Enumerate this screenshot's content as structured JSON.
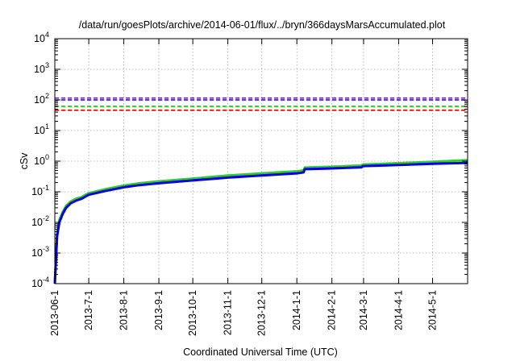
{
  "chart_data": {
    "type": "line",
    "title": "/data/run/goesPlots/archive/2014-06-01/flux/../bryn/366daysMarsAccumulated.plot",
    "xlabel": "Coordinated Universal Time (UTC)",
    "ylabel": "cSv",
    "yscale": "log",
    "ylim": [
      0.0001,
      10000
    ],
    "xlim": [
      "2013-06-01",
      "2014-06-01"
    ],
    "grid": true,
    "x_ticks": [
      "2013-06-1",
      "2013-7-1",
      "2013-8-1",
      "2013-9-1",
      "2013-10-1",
      "2013-11-1",
      "2013-12-1",
      "2014-1-1",
      "2014-2-1",
      "2014-3-1",
      "2014-4-1",
      "2014-5-1"
    ],
    "y_ticks": [
      {
        "base": "10",
        "exp": "-4",
        "value": 0.0001
      },
      {
        "base": "10",
        "exp": "-3",
        "value": 0.001
      },
      {
        "base": "10",
        "exp": "-2",
        "value": 0.01
      },
      {
        "base": "10",
        "exp": "-1",
        "value": 0.1
      },
      {
        "base": "10",
        "exp": "0",
        "value": 1
      },
      {
        "base": "10",
        "exp": "1",
        "value": 10
      },
      {
        "base": "10",
        "exp": "2",
        "value": 100
      },
      {
        "base": "10",
        "exp": "3",
        "value": 1000
      },
      {
        "base": "10",
        "exp": "4",
        "value": 10000
      }
    ],
    "reference_lines": [
      {
        "value": 115,
        "color": "#8b00ff",
        "style": "dashed"
      },
      {
        "value": 100,
        "color": "#0000ff",
        "style": "dashed"
      },
      {
        "value": 62,
        "color": "#00cc00",
        "style": "dashed"
      },
      {
        "value": 46,
        "color": "#e00000",
        "style": "dashed"
      }
    ],
    "series": [
      {
        "color": "#33cc33",
        "x": [
          "2013-06-01",
          "2013-06-03",
          "2013-06-05",
          "2013-06-08",
          "2013-06-11",
          "2013-06-15",
          "2013-06-20",
          "2013-06-25",
          "2013-06-28",
          "2013-07-01",
          "2013-07-15",
          "2013-08-01",
          "2013-08-15",
          "2013-09-01",
          "2013-10-01",
          "2013-11-01",
          "2013-12-01",
          "2014-01-01",
          "2014-01-07",
          "2014-01-08",
          "2014-02-01",
          "2014-02-27",
          "2014-02-28",
          "2014-03-01",
          "2014-04-01",
          "2014-05-01",
          "2014-06-01"
        ],
        "y": [
          0.0001,
          0.004,
          0.012,
          0.022,
          0.035,
          0.048,
          0.06,
          0.068,
          0.08,
          0.09,
          0.12,
          0.16,
          0.19,
          0.22,
          0.27,
          0.34,
          0.4,
          0.47,
          0.5,
          0.62,
          0.66,
          0.72,
          0.76,
          0.78,
          0.86,
          0.95,
          1.08
        ]
      },
      {
        "color": "#0000ee",
        "x": [
          "2013-06-01",
          "2013-06-03",
          "2013-06-05",
          "2013-06-08",
          "2013-06-11",
          "2013-06-15",
          "2013-06-20",
          "2013-06-25",
          "2013-06-28",
          "2013-07-01",
          "2013-07-15",
          "2013-08-01",
          "2013-08-15",
          "2013-09-01",
          "2013-10-01",
          "2013-11-01",
          "2013-12-01",
          "2014-01-01",
          "2014-01-07",
          "2014-01-08",
          "2014-02-01",
          "2014-02-27",
          "2014-02-28",
          "2014-03-01",
          "2014-04-01",
          "2014-05-01",
          "2014-06-01"
        ],
        "y": [
          0.0001,
          0.0035,
          0.01,
          0.019,
          0.03,
          0.042,
          0.052,
          0.06,
          0.07,
          0.08,
          0.105,
          0.14,
          0.165,
          0.19,
          0.235,
          0.29,
          0.34,
          0.4,
          0.43,
          0.55,
          0.58,
          0.63,
          0.67,
          0.69,
          0.75,
          0.82,
          0.88
        ]
      }
    ]
  }
}
